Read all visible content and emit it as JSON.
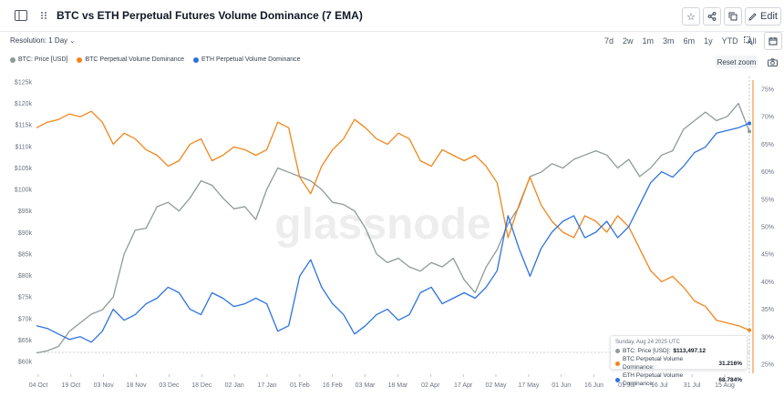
{
  "header": {
    "title": "BTC vs ETH Perpetual Futures Volume Dominance (7 EMA)",
    "edit_label": "Edit"
  },
  "controls": {
    "resolution": "Resolution: 1 Day",
    "ranges": [
      "7d",
      "2w",
      "1m",
      "3m",
      "6m",
      "1y",
      "YTD",
      "All"
    ],
    "reset_zoom": "Reset zoom"
  },
  "watermark": "glassnode",
  "colors": {
    "btc": "#8e9a97",
    "btc_dom": "#f0861b",
    "eth_dom": "#2d72e0"
  },
  "tooltip": {
    "date": "Sunday, Aug 24 2025 UTC",
    "rows": [
      {
        "label": "BTC: Price [USD]:",
        "value": "$113,497.12"
      },
      {
        "label": "BTC Perpetual Volume Dominance:",
        "value": "31.216%"
      },
      {
        "label": "ETH Perpetual Volume Dominance:",
        "value": "68.784%"
      }
    ]
  },
  "chart_data": {
    "type": "line",
    "title": "BTC vs ETH Perpetual Futures Volume Dominance (7 EMA)",
    "x_ticks": [
      "04 Oct",
      "19 Oct",
      "03 Nov",
      "18 Nov",
      "03 Dec",
      "18 Dec",
      "02 Jan",
      "17 Jan",
      "01 Feb",
      "16 Feb",
      "03 Mar",
      "18 Mar",
      "02 Apr",
      "17 Apr",
      "02 May",
      "17 May",
      "01 Jun",
      "16 Jun",
      "01 Jul",
      "16 Jul",
      "31 Jul",
      "15 Aug"
    ],
    "y_left_ticks": [
      "$60k",
      "$65k",
      "$70k",
      "$75k",
      "$80k",
      "$85k",
      "$90k",
      "$95k",
      "$100k",
      "$105k",
      "$110k",
      "$115k",
      "$120k",
      "$125k"
    ],
    "y_left_range": [
      60000,
      125000
    ],
    "y_right_ticks": [
      "25%",
      "30%",
      "35%",
      "40%",
      "45%",
      "50%",
      "55%",
      "60%",
      "65%",
      "70%",
      "75%"
    ],
    "y_right_range": [
      25,
      75
    ],
    "grid": false,
    "legend_position": "top-left",
    "x_index": [
      0,
      5,
      10,
      15,
      20,
      25,
      30,
      35,
      40,
      45,
      50,
      55,
      60,
      65,
      70,
      75,
      80,
      85,
      90,
      95,
      100,
      105,
      110,
      115,
      120,
      125,
      130,
      135,
      140,
      145,
      150,
      155,
      160,
      165,
      170,
      175,
      180,
      185,
      190,
      195,
      200,
      205,
      210,
      215,
      220,
      225,
      230,
      235,
      240,
      245,
      250,
      255,
      260,
      265,
      270,
      275,
      280,
      285,
      290,
      295,
      300,
      305,
      310,
      315,
      320,
      325
    ],
    "series": [
      {
        "name": "BTC: Price [USD]",
        "axis": "left",
        "values": [
          62000,
          62500,
          63500,
          67000,
          69000,
          71000,
          72000,
          75000,
          85000,
          90500,
          91000,
          96000,
          97000,
          95000,
          98000,
          102000,
          101000,
          98000,
          95500,
          96000,
          93000,
          100000,
          105000,
          104000,
          103000,
          102000,
          100000,
          97000,
          96500,
          95000,
          91000,
          85000,
          83000,
          84000,
          82000,
          81000,
          83000,
          82000,
          84000,
          79000,
          76000,
          82000,
          86000,
          92000,
          96000,
          103000,
          104000,
          106000,
          105000,
          107000,
          108000,
          109000,
          108000,
          105000,
          107000,
          103000,
          105000,
          108000,
          109000,
          114000,
          116000,
          118000,
          116000,
          117000,
          120000,
          113500
        ]
      },
      {
        "name": "BTC Perpetual Volume Dominance",
        "axis": "right",
        "values": [
          68.0,
          69.0,
          69.5,
          70.5,
          70.0,
          71.0,
          69.0,
          65.0,
          67.0,
          66.0,
          64.0,
          63.0,
          61.0,
          62.0,
          65.0,
          66.0,
          62.0,
          63.0,
          64.5,
          64.0,
          63.0,
          64.0,
          69.0,
          68.0,
          59.0,
          56.0,
          61.0,
          64.0,
          66.0,
          69.5,
          68.0,
          66.0,
          65.0,
          67.0,
          66.0,
          62.0,
          61.0,
          64.0,
          63.0,
          62.0,
          63.0,
          61.0,
          58.0,
          48.0,
          54.0,
          59.0,
          54.0,
          51.0,
          49.0,
          48.0,
          52.0,
          51.0,
          49.0,
          52.0,
          50.0,
          46.0,
          42.0,
          40.0,
          41.0,
          39.0,
          36.5,
          35.5,
          33.0,
          32.5,
          32.0,
          31.2
        ]
      },
      {
        "name": "ETH Perpetual Volume Dominance",
        "axis": "right",
        "values": [
          32.0,
          31.5,
          30.5,
          29.5,
          30.0,
          29.0,
          31.0,
          35.0,
          33.0,
          34.0,
          36.0,
          37.0,
          39.0,
          38.0,
          35.0,
          34.0,
          38.0,
          37.0,
          35.5,
          36.0,
          37.0,
          36.0,
          31.0,
          32.0,
          41.0,
          44.0,
          39.0,
          36.0,
          34.0,
          30.5,
          32.0,
          34.0,
          35.0,
          33.0,
          34.0,
          38.0,
          39.0,
          36.0,
          37.0,
          38.0,
          37.0,
          39.0,
          42.0,
          52.0,
          46.0,
          41.0,
          46.0,
          49.0,
          51.0,
          52.0,
          48.0,
          49.0,
          51.0,
          48.0,
          50.0,
          54.0,
          58.0,
          60.0,
          59.0,
          61.0,
          63.5,
          64.5,
          67.0,
          67.5,
          68.0,
          68.8
        ]
      }
    ]
  }
}
